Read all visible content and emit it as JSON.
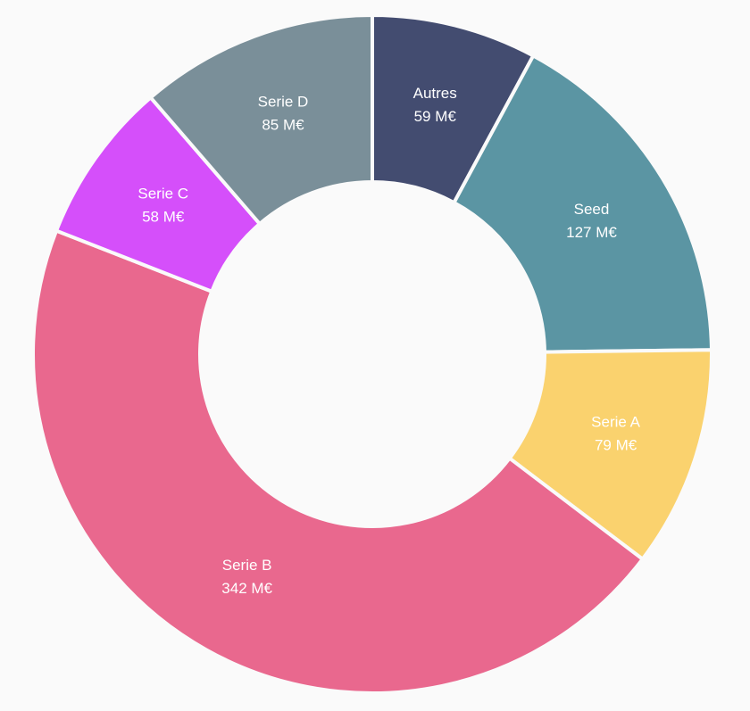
{
  "chart_data": {
    "type": "donut",
    "categories": [
      "Autres",
      "Seed",
      "Serie A",
      "Serie B",
      "Serie C",
      "Serie D"
    ],
    "values": [
      59,
      127,
      79,
      342,
      58,
      85
    ],
    "value_labels": [
      "59 M€",
      "127 M€",
      "79 M€",
      "342 M€",
      "58 M€",
      "85 M€"
    ],
    "colors": [
      "#434c70",
      "#5b95a3",
      "#fad26e",
      "#e9688e",
      "#d54ffa",
      "#7a8f99"
    ]
  }
}
